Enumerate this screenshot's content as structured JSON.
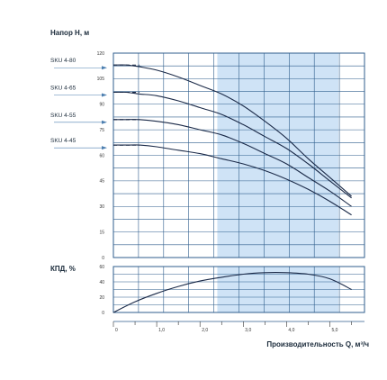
{
  "chart_data": {
    "head_chart": {
      "type": "line",
      "title": "Напор H, м",
      "yticks": [
        0,
        15,
        30,
        45,
        60,
        75,
        90,
        105,
        120
      ],
      "ylim": [
        0,
        120
      ],
      "grid": true,
      "shaded_range": [
        2.4,
        5.2
      ],
      "series": [
        {
          "name": "SKU 4-80",
          "x": [
            0,
            0.3,
            0.6,
            1.0,
            1.5,
            2.0,
            2.5,
            3.0,
            3.5,
            4.0,
            4.5,
            5.0,
            5.5
          ],
          "y": [
            113,
            113,
            112,
            110,
            106,
            101,
            96,
            89,
            80,
            70,
            58,
            47,
            36
          ]
        },
        {
          "name": "SKU 4-65",
          "x": [
            0,
            0.3,
            0.6,
            1.0,
            1.5,
            2.0,
            2.5,
            3.0,
            3.5,
            4.0,
            4.5,
            5.0,
            5.5
          ],
          "y": [
            97,
            97,
            96,
            95,
            92,
            88,
            84,
            78,
            71,
            64,
            55,
            45,
            35
          ]
        },
        {
          "name": "SKU 4-55",
          "x": [
            0,
            0.3,
            0.6,
            1.0,
            1.5,
            2.0,
            2.5,
            3.0,
            3.5,
            4.0,
            4.5,
            5.0,
            5.5
          ],
          "y": [
            81,
            81,
            81,
            80,
            78,
            75,
            72,
            67,
            61,
            55,
            47,
            39,
            30
          ]
        },
        {
          "name": "SKU 4-45",
          "x": [
            0,
            0.3,
            0.6,
            1.0,
            1.5,
            2.0,
            2.5,
            3.0,
            3.5,
            4.0,
            4.5,
            5.0,
            5.5
          ],
          "y": [
            66,
            66,
            66,
            65,
            63,
            61,
            58,
            55,
            51,
            46,
            40,
            33,
            25
          ]
        }
      ]
    },
    "eff_chart": {
      "type": "line",
      "title": "КПД, %",
      "yticks": [
        0,
        20,
        40,
        60
      ],
      "ylim": [
        0,
        60
      ],
      "grid": true,
      "shaded_range": [
        2.4,
        5.2
      ],
      "series": [
        {
          "name": "",
          "x": [
            0,
            0.5,
            1.0,
            1.5,
            2.0,
            2.5,
            3.0,
            3.5,
            4.0,
            4.5,
            5.0,
            5.5
          ],
          "y": [
            0,
            14,
            25,
            34,
            41,
            46,
            50,
            52,
            52,
            50,
            44,
            30
          ]
        }
      ]
    },
    "x_axis": {
      "label": "Производительность Q, м³/ч",
      "xlim": [
        0,
        5.8
      ],
      "ticks": [
        0,
        1.0,
        2.0,
        3.0,
        4.0,
        5.0
      ],
      "tick_labels": [
        "0",
        "1,0",
        "2,0",
        "3,0",
        "4,0",
        "5,0"
      ]
    },
    "colors": {
      "curve": "#1b2a48",
      "grid": "#2f5e8c",
      "shade": "#cfe3f6",
      "arrow": "#4d7fb0"
    }
  }
}
